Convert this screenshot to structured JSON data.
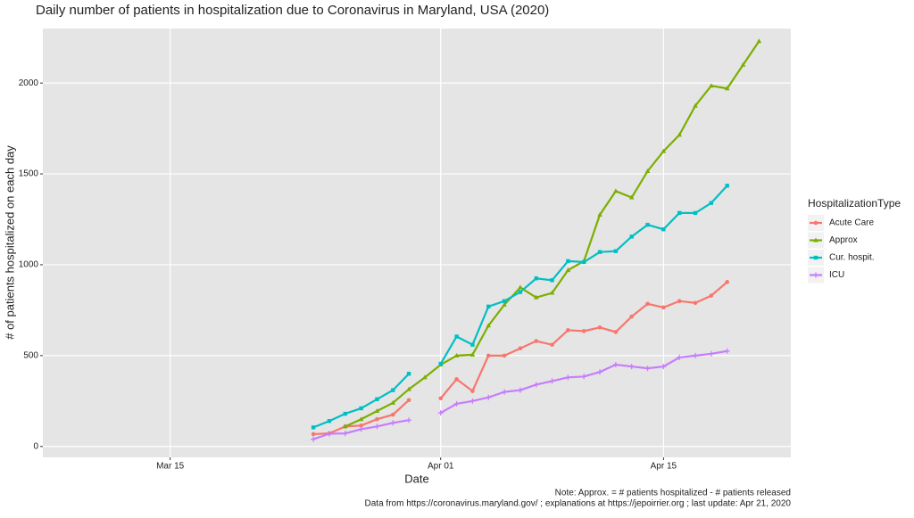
{
  "chart_data": {
    "type": "line",
    "title": "Daily number of patients in hospitalization due to Coronavirus in Maryland, USA (2020)",
    "x_label": "Date",
    "y_label": "# of patients hospitalized on each day",
    "legend_title": "HospitalizationType",
    "notes": [
      "Note: Approx. = # patients hospitalized - # patients released",
      "Data from https://coronavirus.maryland.gov/ ; explanations at https://jepoirrier.org ; last update: Apr 21, 2020"
    ],
    "x": [
      "03-24",
      "03-25",
      "03-26",
      "03-27",
      "03-28",
      "03-29",
      "03-30",
      "03-31",
      "04-01",
      "04-02",
      "04-03",
      "04-04",
      "04-05",
      "04-06",
      "04-07",
      "04-08",
      "04-09",
      "04-10",
      "04-11",
      "04-12",
      "04-13",
      "04-14",
      "04-15",
      "04-16",
      "04-17",
      "04-18",
      "04-19",
      "04-20",
      "04-21"
    ],
    "xlim": [
      "03-07",
      "04-23"
    ],
    "xticks": [
      {
        "value": "03-15",
        "label": "Mar 15"
      },
      {
        "value": "04-01",
        "label": "Apr 01"
      },
      {
        "value": "04-15",
        "label": "Apr 15"
      }
    ],
    "ylim": [
      -60,
      2300
    ],
    "yticks": [
      0,
      500,
      1000,
      1500,
      2000
    ],
    "grid": true,
    "series": [
      {
        "name": "Acute Care",
        "color": "#F8766D",
        "marker": "circle",
        "values": [
          68,
          72,
          110,
          115,
          150,
          175,
          255,
          null,
          265,
          370,
          305,
          500,
          500,
          540,
          580,
          560,
          640,
          635,
          655,
          630,
          715,
          785,
          765,
          800,
          790,
          830,
          905,
          null,
          null
        ]
      },
      {
        "name": "Approx",
        "color": "#7CAE00",
        "marker": "triangle",
        "values": [
          null,
          null,
          110,
          150,
          195,
          240,
          315,
          380,
          450,
          500,
          505,
          665,
          780,
          875,
          820,
          845,
          970,
          1020,
          1275,
          1405,
          1370,
          1515,
          1625,
          1715,
          1875,
          1985,
          1970,
          2100,
          2230
        ]
      },
      {
        "name": "Cur. hospit.",
        "color": "#00BFC4",
        "marker": "square",
        "values": [
          105,
          140,
          180,
          210,
          260,
          310,
          400,
          null,
          455,
          605,
          560,
          770,
          800,
          850,
          925,
          915,
          1020,
          1015,
          1070,
          1075,
          1155,
          1220,
          1195,
          1285,
          1285,
          1340,
          1435,
          null,
          null
        ]
      },
      {
        "name": "ICU",
        "color": "#C77CFF",
        "marker": "plus",
        "values": [
          40,
          70,
          72,
          95,
          110,
          130,
          145,
          null,
          185,
          235,
          250,
          270,
          300,
          310,
          340,
          360,
          380,
          385,
          410,
          450,
          440,
          430,
          440,
          490,
          500,
          510,
          525,
          null,
          null
        ]
      }
    ]
  }
}
